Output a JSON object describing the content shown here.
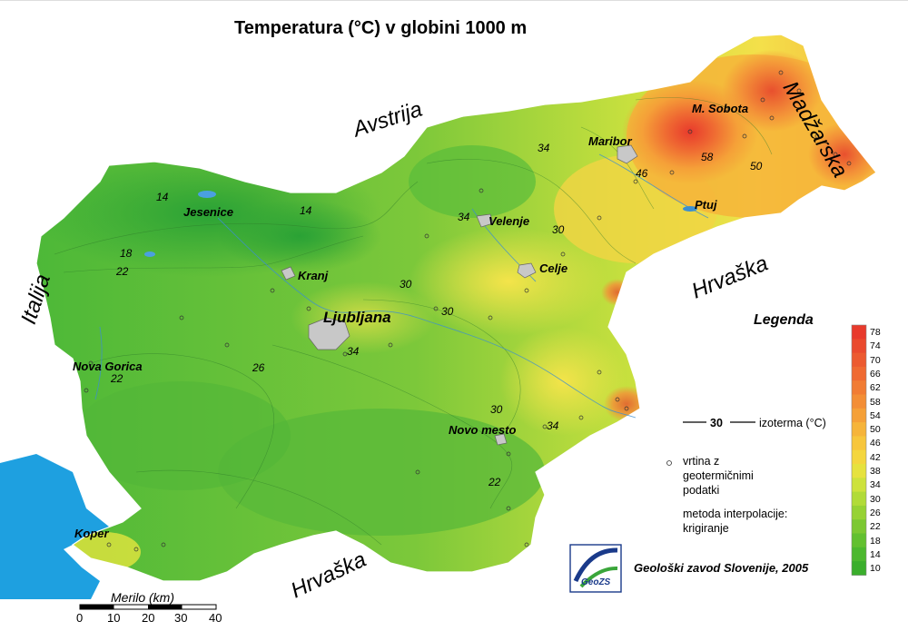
{
  "title": "Temperatura (°C) v globini 1000 m",
  "countries": {
    "avstrija": "Avstrija",
    "madzarska": "Madžarska",
    "hrvaska_east": "Hrvaška",
    "hrvaska_south": "Hrvaška",
    "italija": "Italija"
  },
  "cities": {
    "maribor": "Maribor",
    "m_sobota": "M. Sobota",
    "ptuj": "Ptuj",
    "velenje": "Velenje",
    "celje": "Celje",
    "kranj": "Kranj",
    "ljubljana": "Ljubljana",
    "jesenice": "Jesenice",
    "nova_gorica": "Nova Gorica",
    "novo_mesto": "Novo mesto",
    "koper": "Koper"
  },
  "isotherm_labels": [
    "14",
    "14",
    "18",
    "22",
    "34",
    "46",
    "58",
    "50",
    "34",
    "30",
    "30",
    "30",
    "34",
    "26",
    "22",
    "30",
    "34",
    "22"
  ],
  "legend": {
    "title": "Legenda",
    "colorbar": [
      "78",
      "74",
      "70",
      "66",
      "62",
      "58",
      "54",
      "50",
      "46",
      "42",
      "38",
      "34",
      "30",
      "26",
      "22",
      "18",
      "14",
      "10"
    ],
    "colors": [
      "#e83a2c",
      "#ea4a2e",
      "#ec5a30",
      "#ef6a32",
      "#f17c34",
      "#f38e36",
      "#f5a038",
      "#f6b43a",
      "#f7c63c",
      "#f4d63e",
      "#e6e23e",
      "#cde23c",
      "#b1db38",
      "#96d234",
      "#7cc832",
      "#62c030",
      "#4cb82f",
      "#3aae2c"
    ],
    "isotherm_value": "30",
    "isotherm_label": "izoterma (°C)",
    "well_label": [
      "vrtina z",
      "geotermičnimi",
      "podatki"
    ],
    "method_label": [
      "metoda interpolacije:",
      "krigiranje"
    ]
  },
  "credit": "Geološki zavod Slovenije, 2005",
  "logo_text": "GeoZS",
  "scale": {
    "title": "Merilo (km)",
    "ticks": [
      "0",
      "10",
      "20",
      "30",
      "40"
    ]
  },
  "colors": {
    "sea": "#1ea0e0",
    "cold": "#2faa3a",
    "mid": "#a8dc3c",
    "warm": "#f4e44a",
    "hot": "#f6a035",
    "hottest": "#ea4a30"
  }
}
